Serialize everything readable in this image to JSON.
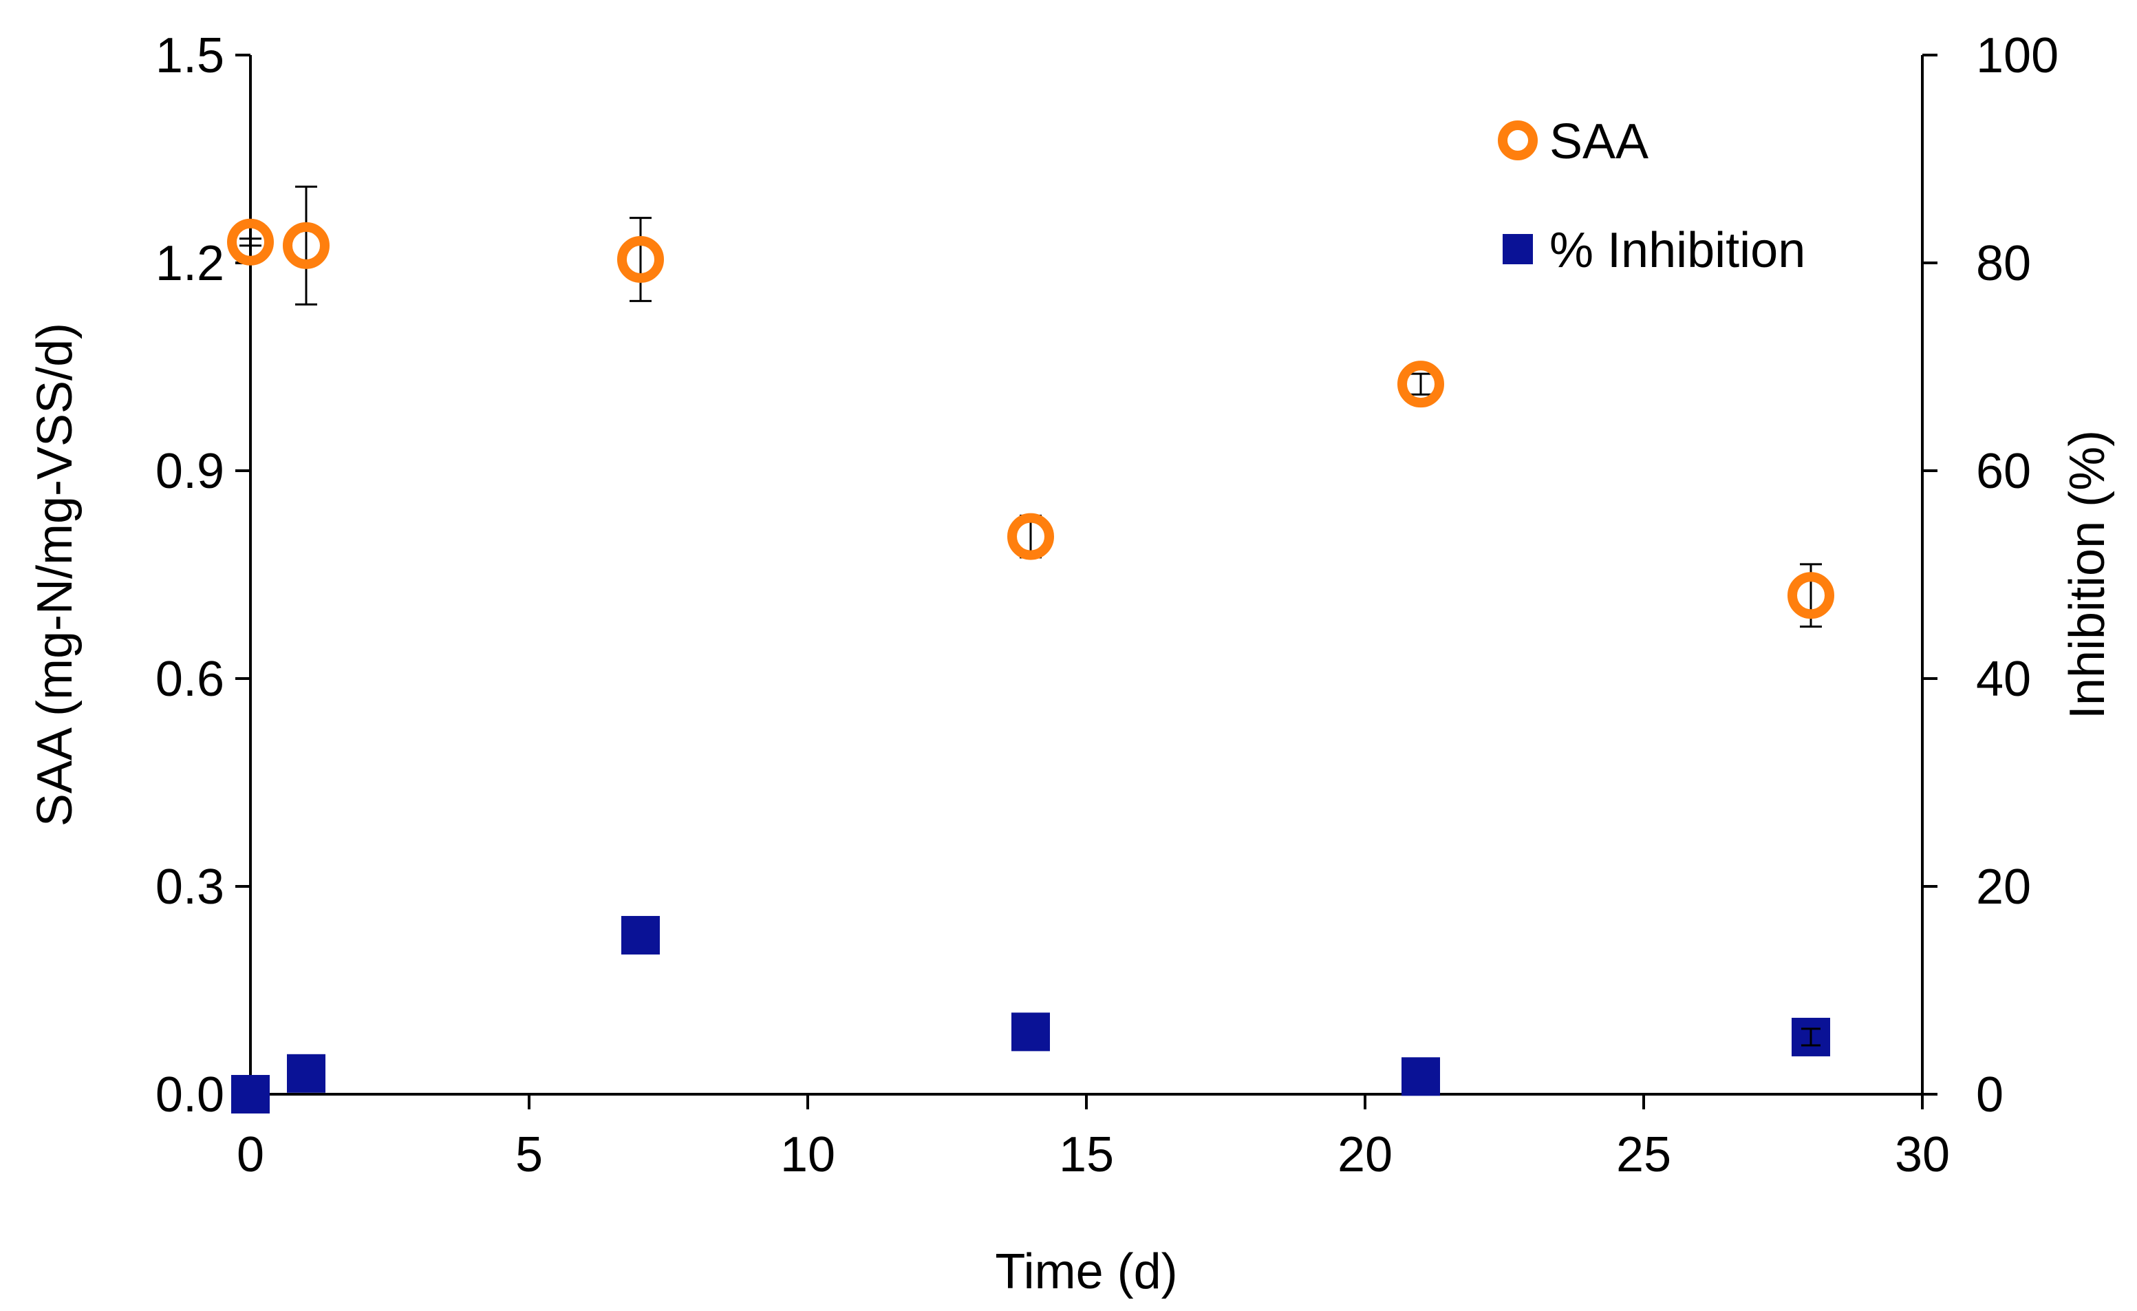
{
  "chart_data": {
    "type": "scatter",
    "title": "",
    "xlabel": "Time (d)",
    "ylabel": "SAA (mg-N/mg-VSS/d)",
    "y2label": "Inhibition (%)",
    "xlim": [
      0,
      30
    ],
    "ylim": [
      0,
      1.5
    ],
    "y2lim": [
      0,
      100
    ],
    "grid": false,
    "legend_position": "top-right",
    "x_ticks": [
      0,
      5,
      10,
      15,
      20,
      25,
      30
    ],
    "y_ticks": [
      "0.0",
      "0.3",
      "0.6",
      "0.9",
      "1.2",
      "1.5"
    ],
    "y2_ticks": [
      "0",
      "20",
      "40",
      "60",
      "80",
      "100"
    ],
    "series": [
      {
        "name": "SAA",
        "axis": "left",
        "marker": "open-circle",
        "color": "#FF7F0E",
        "x": [
          0,
          1,
          7,
          14,
          21,
          28
        ],
        "y": [
          1.23,
          1.225,
          1.205,
          0.805,
          1.025,
          0.72
        ],
        "error": [
          0.005,
          0.085,
          0.06,
          0.03,
          0.015,
          0.045
        ]
      },
      {
        "name": "% Inhibition",
        "axis": "right",
        "marker": "filled-square",
        "color": "#0A1296",
        "x": [
          0,
          1,
          7,
          14,
          21,
          28
        ],
        "y": [
          0,
          2,
          15.3,
          6,
          1.7,
          5.5
        ],
        "error": [
          0,
          0,
          0,
          0,
          0,
          0.8
        ]
      }
    ]
  }
}
